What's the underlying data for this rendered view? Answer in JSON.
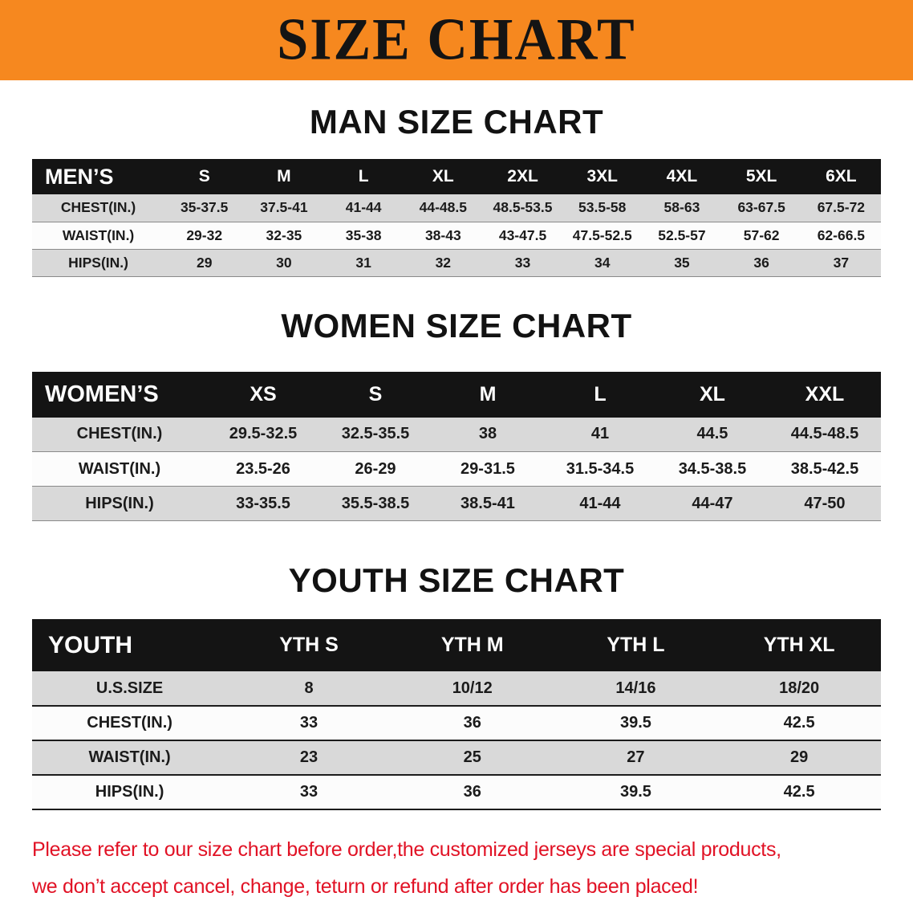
{
  "banner": {
    "title": "SIZE CHART",
    "bg_color": "#F6881F",
    "text_color": "#141414"
  },
  "colors": {
    "table_header_bg": "#141414",
    "table_header_text": "#FFFFFF",
    "row_stripe_gray": "#D9D9D9",
    "row_white": "#FCFCFC",
    "disclaimer_red": "#E11225"
  },
  "chart_data": [
    {
      "type": "table",
      "title": "MAN SIZE CHART",
      "header": [
        "MEN’S",
        "S",
        "M",
        "L",
        "XL",
        "2XL",
        "3XL",
        "4XL",
        "5XL",
        "6XL"
      ],
      "rows": [
        [
          "CHEST(IN.)",
          "35-37.5",
          "37.5-41",
          "41-44",
          "44-48.5",
          "48.5-53.5",
          "53.5-58",
          "58-63",
          "63-67.5",
          "67.5-72"
        ],
        [
          "WAIST(IN.)",
          "29-32",
          "32-35",
          "35-38",
          "38-43",
          "43-47.5",
          "47.5-52.5",
          "52.5-57",
          "57-62",
          "62-66.5"
        ],
        [
          "HIPS(IN.)",
          "29",
          "30",
          "31",
          "32",
          "33",
          "34",
          "35",
          "36",
          "37"
        ]
      ]
    },
    {
      "type": "table",
      "title": "WOMEN SIZE CHART",
      "header": [
        "WOMEN’S",
        "XS",
        "S",
        "M",
        "L",
        "XL",
        "XXL"
      ],
      "rows": [
        [
          "CHEST(IN.)",
          "29.5-32.5",
          "32.5-35.5",
          "38",
          "41",
          "44.5",
          "44.5-48.5"
        ],
        [
          "WAIST(IN.)",
          "23.5-26",
          "26-29",
          "29-31.5",
          "31.5-34.5",
          "34.5-38.5",
          "38.5-42.5"
        ],
        [
          "HIPS(IN.)",
          "33-35.5",
          "35.5-38.5",
          "38.5-41",
          "41-44",
          "44-47",
          "47-50"
        ]
      ]
    },
    {
      "type": "table",
      "title": "YOUTH SIZE CHART",
      "header": [
        "YOUTH",
        "YTH S",
        "YTH M",
        "YTH L",
        "YTH XL"
      ],
      "rows": [
        [
          "U.S.SIZE",
          "8",
          "10/12",
          "14/16",
          "18/20"
        ],
        [
          "CHEST(IN.)",
          "33",
          "36",
          "39.5",
          "42.5"
        ],
        [
          "WAIST(IN.)",
          "23",
          "25",
          "27",
          "29"
        ],
        [
          "HIPS(IN.)",
          "33",
          "36",
          "39.5",
          "42.5"
        ]
      ]
    }
  ],
  "footer": {
    "line1": "Please refer to our size chart before order,the customized jerseys are special products,",
    "line2": "we don’t accept cancel, change, teturn or refund after order has been placed!"
  }
}
